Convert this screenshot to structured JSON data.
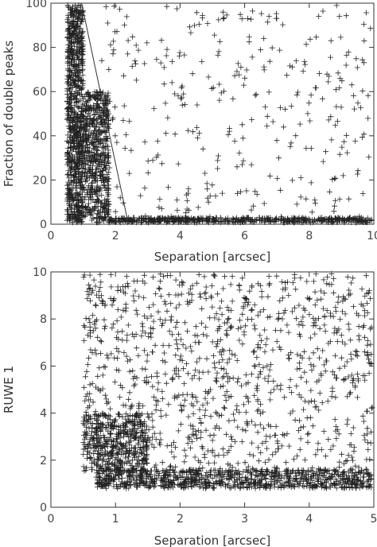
{
  "chart_data": [
    {
      "type": "scatter",
      "marker": "plus",
      "xlabel": "Separation [arcsec]",
      "ylabel": "Fraction of double peaks",
      "xlim": [
        0,
        10
      ],
      "ylim": [
        0,
        100
      ],
      "xticks": [
        "0",
        "2",
        "4",
        "6",
        "8",
        "10"
      ],
      "yticks": [
        "0",
        "20",
        "40",
        "60",
        "80",
        "100"
      ],
      "grid": false,
      "reference_line": {
        "x": [
          0.95,
          2.4
        ],
        "y": [
          100,
          0
        ]
      },
      "density": [
        {
          "x": [
            0.5,
            1.0
          ],
          "y": [
            0,
            100
          ],
          "count": 900
        },
        {
          "x": [
            1.0,
            1.8
          ],
          "y": [
            0,
            60
          ],
          "count": 600
        },
        {
          "x": [
            1.8,
            10
          ],
          "y": [
            0,
            3
          ],
          "count": 700
        },
        {
          "x": [
            1.5,
            10
          ],
          "y": [
            3,
            100
          ],
          "count": 330
        }
      ]
    },
    {
      "type": "scatter",
      "marker": "plus",
      "xlabel": "Separation [arcsec]",
      "ylabel": "RUWE 1",
      "xlim": [
        0,
        5
      ],
      "ylim": [
        0,
        10
      ],
      "xticks": [
        "0",
        "1",
        "2",
        "3",
        "4",
        "5"
      ],
      "yticks": [
        "0",
        "2",
        "4",
        "6",
        "8",
        "10"
      ],
      "grid": false,
      "density": [
        {
          "x": [
            0.7,
            5
          ],
          "y": [
            0.8,
            1.6
          ],
          "count": 900
        },
        {
          "x": [
            0.5,
            1.5
          ],
          "y": [
            1.5,
            4
          ],
          "count": 450
        },
        {
          "x": [
            0.5,
            5
          ],
          "y": [
            1.5,
            10
          ],
          "count": 1100
        }
      ]
    }
  ]
}
